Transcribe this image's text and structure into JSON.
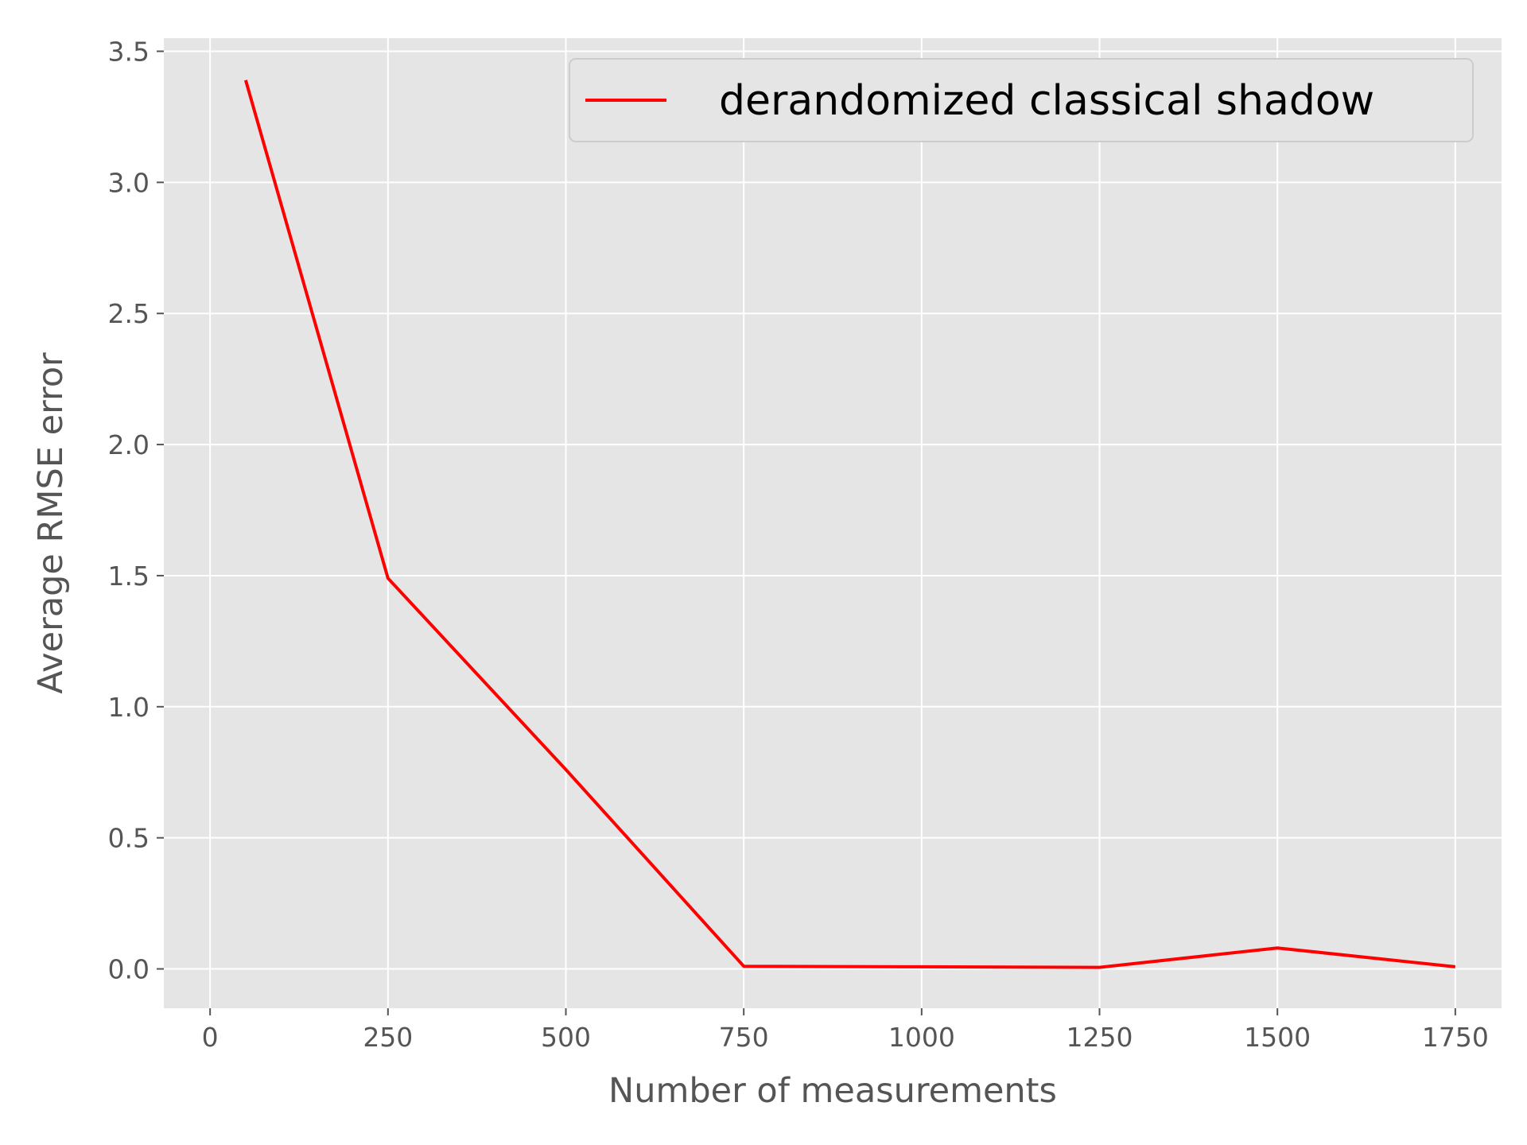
{
  "chart_data": {
    "type": "line",
    "title": "",
    "xlabel": "Number of measurements",
    "ylabel": "Average RMSE error",
    "xlim": [
      -65,
      1815
    ],
    "ylim": [
      -0.15,
      3.55
    ],
    "xticks": [
      0,
      250,
      500,
      750,
      1000,
      1250,
      1500,
      1750
    ],
    "xtick_labels": [
      "0",
      "250",
      "500",
      "750",
      "1000",
      "1250",
      "1500",
      "1750"
    ],
    "yticks": [
      0.0,
      0.5,
      1.0,
      1.5,
      2.0,
      2.5,
      3.0,
      3.5
    ],
    "ytick_labels": [
      "0.0",
      "0.5",
      "1.0",
      "1.5",
      "2.0",
      "2.5",
      "3.0",
      "3.5"
    ],
    "grid": true,
    "legend_position": "top-right",
    "series": [
      {
        "name": "derandomized classical shadow",
        "color": "#ff0000",
        "x": [
          50,
          250,
          500,
          750,
          1000,
          1250,
          1500,
          1750
        ],
        "y": [
          3.39,
          1.49,
          0.76,
          0.01,
          0.008,
          0.006,
          0.08,
          0.008
        ]
      }
    ]
  },
  "style": {
    "plot_background": "#e5e5e5",
    "grid_color": "#ffffff",
    "tick_color": "#555555"
  }
}
